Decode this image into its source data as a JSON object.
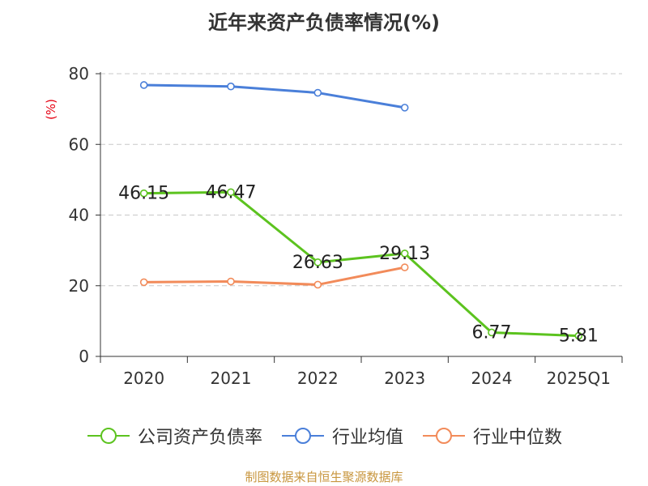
{
  "title": "近年来资产负债率情况(%)",
  "source": "制图数据来自恒生聚源数据库",
  "chart_data": {
    "type": "line",
    "title": "近年来资产负债率情况(%)",
    "ylabel": "(%)",
    "xlabel": "",
    "categories": [
      "2020",
      "2021",
      "2022",
      "2023",
      "2024",
      "2025Q1"
    ],
    "ylim": [
      0,
      80
    ],
    "yticks": [
      0,
      20,
      40,
      60,
      80
    ],
    "grid": true,
    "legend_position": "bottom",
    "series": [
      {
        "name": "公司资产负债率",
        "color": "#5cc31f",
        "values": [
          46.15,
          46.47,
          26.63,
          29.13,
          6.77,
          5.81
        ],
        "labels": [
          "46.15",
          "46.47",
          "26.63",
          "29.13",
          "6.77",
          "5.81"
        ]
      },
      {
        "name": "行业均值",
        "color": "#4a7fd9",
        "values": [
          76.8,
          76.4,
          74.6,
          70.4,
          null,
          null
        ]
      },
      {
        "name": "行业中位数",
        "color": "#f28b5a",
        "values": [
          21.0,
          21.2,
          20.3,
          25.2,
          null,
          null
        ]
      }
    ]
  }
}
